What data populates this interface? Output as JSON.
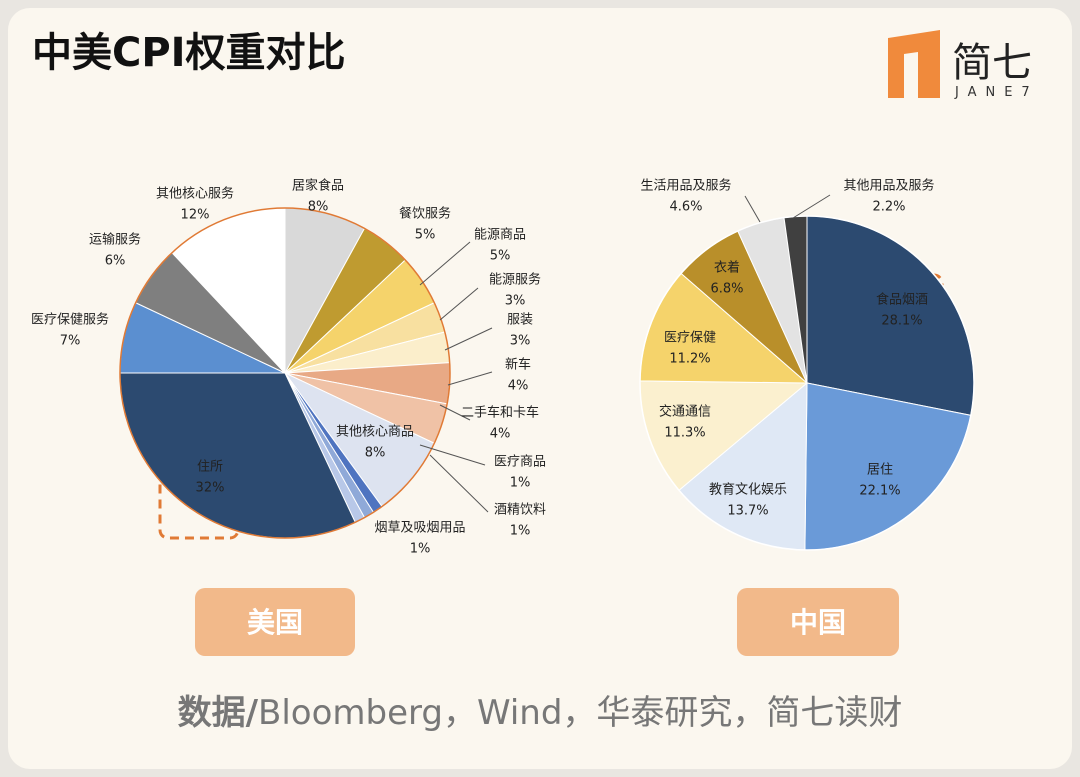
{
  "header": {
    "title": "中美CPI权重对比",
    "logo": "简七",
    "logo_sub": "JANE7"
  },
  "chart_data": [
    {
      "type": "pie",
      "title": "美国",
      "categories": [
        "居家食品",
        "餐饮服务",
        "能源商品",
        "能源服务",
        "服装",
        "新车",
        "二手车和卡车",
        "其他核心商品",
        "医疗商品",
        "酒精饮料",
        "烟草及吸烟用品",
        "住所",
        "医疗保健服务",
        "运输服务",
        "其他核心服务"
      ],
      "values": [
        8,
        5,
        5,
        3,
        3,
        4,
        4,
        8,
        1,
        1,
        1,
        32,
        7,
        6,
        12
      ],
      "value_labels": [
        "8%",
        "5%",
        "5%",
        "3%",
        "3%",
        "4%",
        "4%",
        "8%",
        "1%",
        "1%",
        "1%",
        "32%",
        "7%",
        "6%",
        "12%"
      ],
      "colors": [
        "#d9d9d9",
        "#bf9b30",
        "#f5d36b",
        "#f8e0a0",
        "#fbeecb",
        "#e8a985",
        "#f0c2a6",
        "#dde3f0",
        "#4f74c0",
        "#8fa9d8",
        "#b8c8e8",
        "#2c4a70",
        "#5b8fd0",
        "#7f7f7f",
        "#ffffff"
      ]
    },
    {
      "type": "pie",
      "title": "中国",
      "categories": [
        "食品烟酒",
        "居住",
        "教育文化娱乐",
        "交通通信",
        "医疗保健",
        "衣着",
        "生活用品及服务",
        "其他用品及服务"
      ],
      "values": [
        28.1,
        22.1,
        13.7,
        11.3,
        11.2,
        6.8,
        4.6,
        2.2
      ],
      "value_labels": [
        "28.1%",
        "22.1%",
        "13.7%",
        "11.3%",
        "11.2%",
        "6.8%",
        "4.6%",
        "2.2%"
      ],
      "colors": [
        "#2c4a70",
        "#6a9ad8",
        "#dfe8f5",
        "#fbf0cf",
        "#f5d36b",
        "#b98f2a",
        "#e3e3e3",
        "#404040"
      ]
    }
  ],
  "source_label": "数据/",
  "source": "Bloomberg，Wind，华泰研究，简七读财"
}
